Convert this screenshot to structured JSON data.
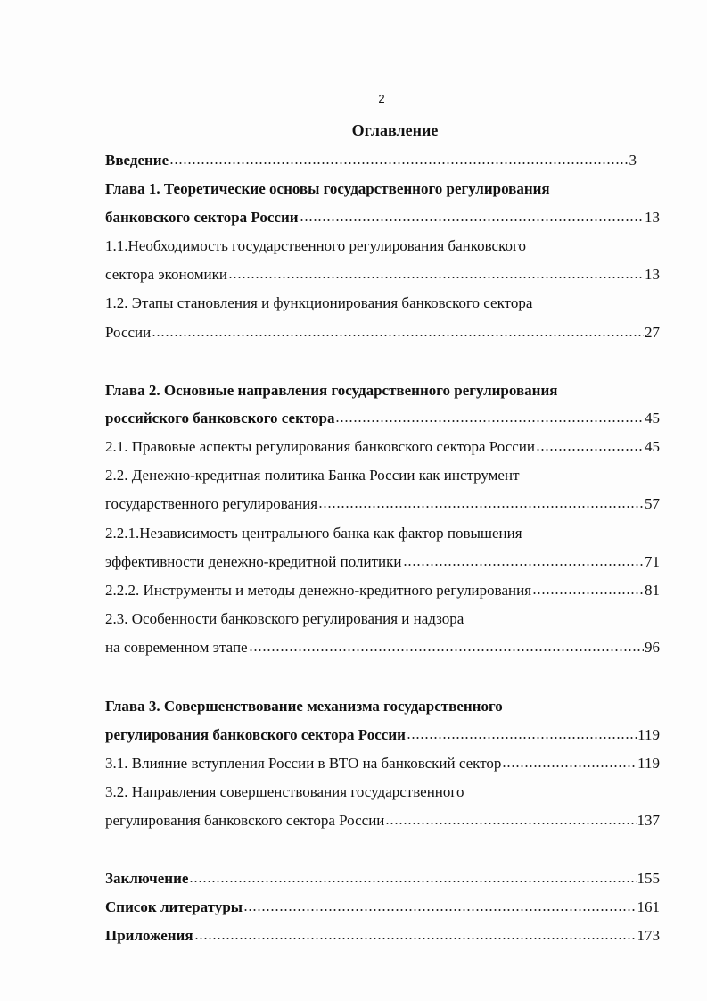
{
  "page_number": "2",
  "title": "Оглавление",
  "entries": [
    {
      "text": "Введение",
      "page": "3"
    },
    {
      "text": "Глава 1. Теоретические основы государственного регулирования"
    },
    {
      "text": "банковского сектора России",
      "page": "13"
    },
    {
      "text": "1.1.Необходимость государственного регулирования банковского"
    },
    {
      "text": "сектора  экономики",
      "page": "13"
    },
    {
      "text": "1.2. Этапы становления и функционирования банковского сектора"
    },
    {
      "text": "России",
      "page": "27"
    },
    {
      "text": "Глава 2. Основные направления государственного регулирования"
    },
    {
      "text": "российского банковского сектора",
      "page": "45"
    },
    {
      "text": "2.1. Правовые аспекты регулирования банковского сектора России",
      "page": "45"
    },
    {
      "text": "2.2. Денежно-кредитная политика Банка России  как инструмент"
    },
    {
      "text": "государственного регулирования",
      "page": "57"
    },
    {
      "text": "2.2.1.Независимость центрального банка как фактор повышения"
    },
    {
      "text": "эффективности денежно-кредитной политики",
      "page": "71"
    },
    {
      "text": "2.2.2. Инструменты и методы денежно-кредитного регулирования",
      "page": "81"
    },
    {
      "text": "2.3. Особенности банковского регулирования и надзора"
    },
    {
      "text": "на современном этапе",
      "page": "96"
    },
    {
      "text": "Глава 3. Совершенствование механизма государственного"
    },
    {
      "text": "регулирования банковского сектора России",
      "page": "119"
    },
    {
      "text": "3.1. Влияние вступления России в ВТО на банковский сектор",
      "page": "119"
    },
    {
      "text": "3.2. Направления совершенствования государственного"
    },
    {
      "text": "регулирования банковского сектора России",
      "page": "137"
    },
    {
      "text": "Заключение",
      "page": "155"
    },
    {
      "text": "Список литературы",
      "page": "161"
    },
    {
      "text": "Приложения",
      "page": "173"
    }
  ]
}
